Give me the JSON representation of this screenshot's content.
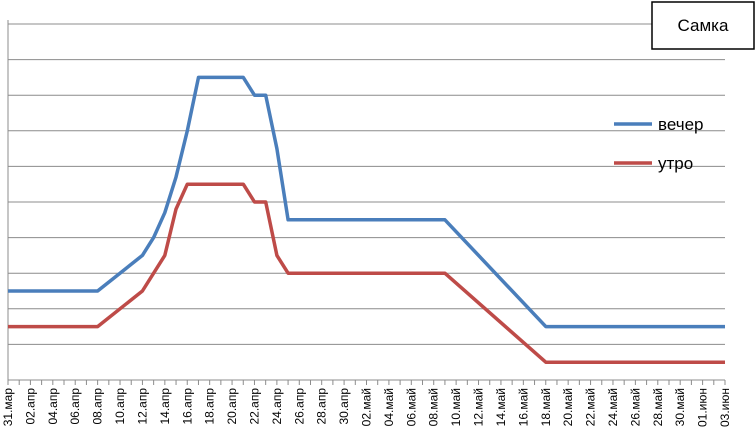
{
  "chart_data": {
    "type": "line",
    "title": "Самка",
    "xlabel": "",
    "ylabel": "",
    "grid": true,
    "legend_position": "right",
    "ylim": [
      0,
      10
    ],
    "x_tick_labels": [
      "31.мар",
      "02.апр",
      "04.апр",
      "06.апр",
      "08.апр",
      "10.апр",
      "12.апр",
      "14.апр",
      "16.апр",
      "18.апр",
      "20.апр",
      "22.апр",
      "24.апр",
      "26.апр",
      "28.апр",
      "30.апр",
      "02.май",
      "04.май",
      "06.май",
      "08.май",
      "10.май",
      "12.май",
      "14.май",
      "16.май",
      "18.май",
      "20.май",
      "22.май",
      "24.май",
      "26.май",
      "28.май",
      "30.май",
      "01.июн",
      "03.июн"
    ],
    "series": [
      {
        "name": "вечер",
        "color": "#4a7ebb",
        "points": [
          [
            "31.мар",
            2.5
          ],
          [
            "08.апр",
            2.5
          ],
          [
            "12.апр",
            3.5
          ],
          [
            "13.апр",
            4.0
          ],
          [
            "14.апр",
            4.7
          ],
          [
            "15.апр",
            5.7
          ],
          [
            "16.апр",
            7.0
          ],
          [
            "17.апр",
            8.5
          ],
          [
            "21.апр",
            8.5
          ],
          [
            "22.апр",
            8.0
          ],
          [
            "23.апр",
            8.0
          ],
          [
            "24.апр",
            6.5
          ],
          [
            "25.апр",
            4.5
          ],
          [
            "09.май",
            4.5
          ],
          [
            "18.май",
            1.5
          ],
          [
            "03.июн",
            1.5
          ]
        ]
      },
      {
        "name": "утро",
        "color": "#be4b48",
        "points": [
          [
            "31.мар",
            1.5
          ],
          [
            "08.апр",
            1.5
          ],
          [
            "12.апр",
            2.5
          ],
          [
            "14.апр",
            3.5
          ],
          [
            "15.апр",
            4.8
          ],
          [
            "16.апр",
            5.5
          ],
          [
            "21.апр",
            5.5
          ],
          [
            "22.апр",
            5.0
          ],
          [
            "23.апр",
            5.0
          ],
          [
            "24.апр",
            3.5
          ],
          [
            "25.апр",
            3.0
          ],
          [
            "09.май",
            3.0
          ],
          [
            "18.май",
            0.5
          ],
          [
            "03.июн",
            0.5
          ]
        ]
      }
    ]
  }
}
